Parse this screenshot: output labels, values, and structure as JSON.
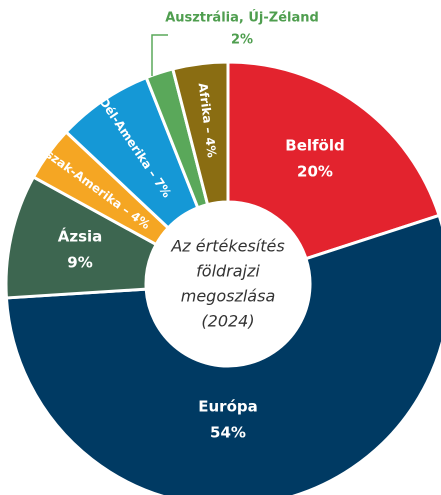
{
  "chart_data": {
    "type": "donut",
    "center_label": [
      "Az értékesítés",
      "földrajzi",
      "megoszlása",
      "(2024)"
    ],
    "categories": [
      "Belföld",
      "Európa",
      "Ázsia",
      "Észak-Amerika",
      "Dél-Amerika",
      "Ausztrália, Új-Zéland",
      "Afrika"
    ],
    "values": [
      20,
      54,
      9,
      4,
      7,
      2,
      4
    ],
    "value_labels": [
      "20%",
      "54%",
      "9%",
      "– 4%",
      "– 7%",
      "2%",
      "– 4%"
    ],
    "colors": [
      "#e3232e",
      "#003a63",
      "#3d6650",
      "#f5a623",
      "#1598d6",
      "#5aa85a",
      "#8a6d12"
    ]
  }
}
